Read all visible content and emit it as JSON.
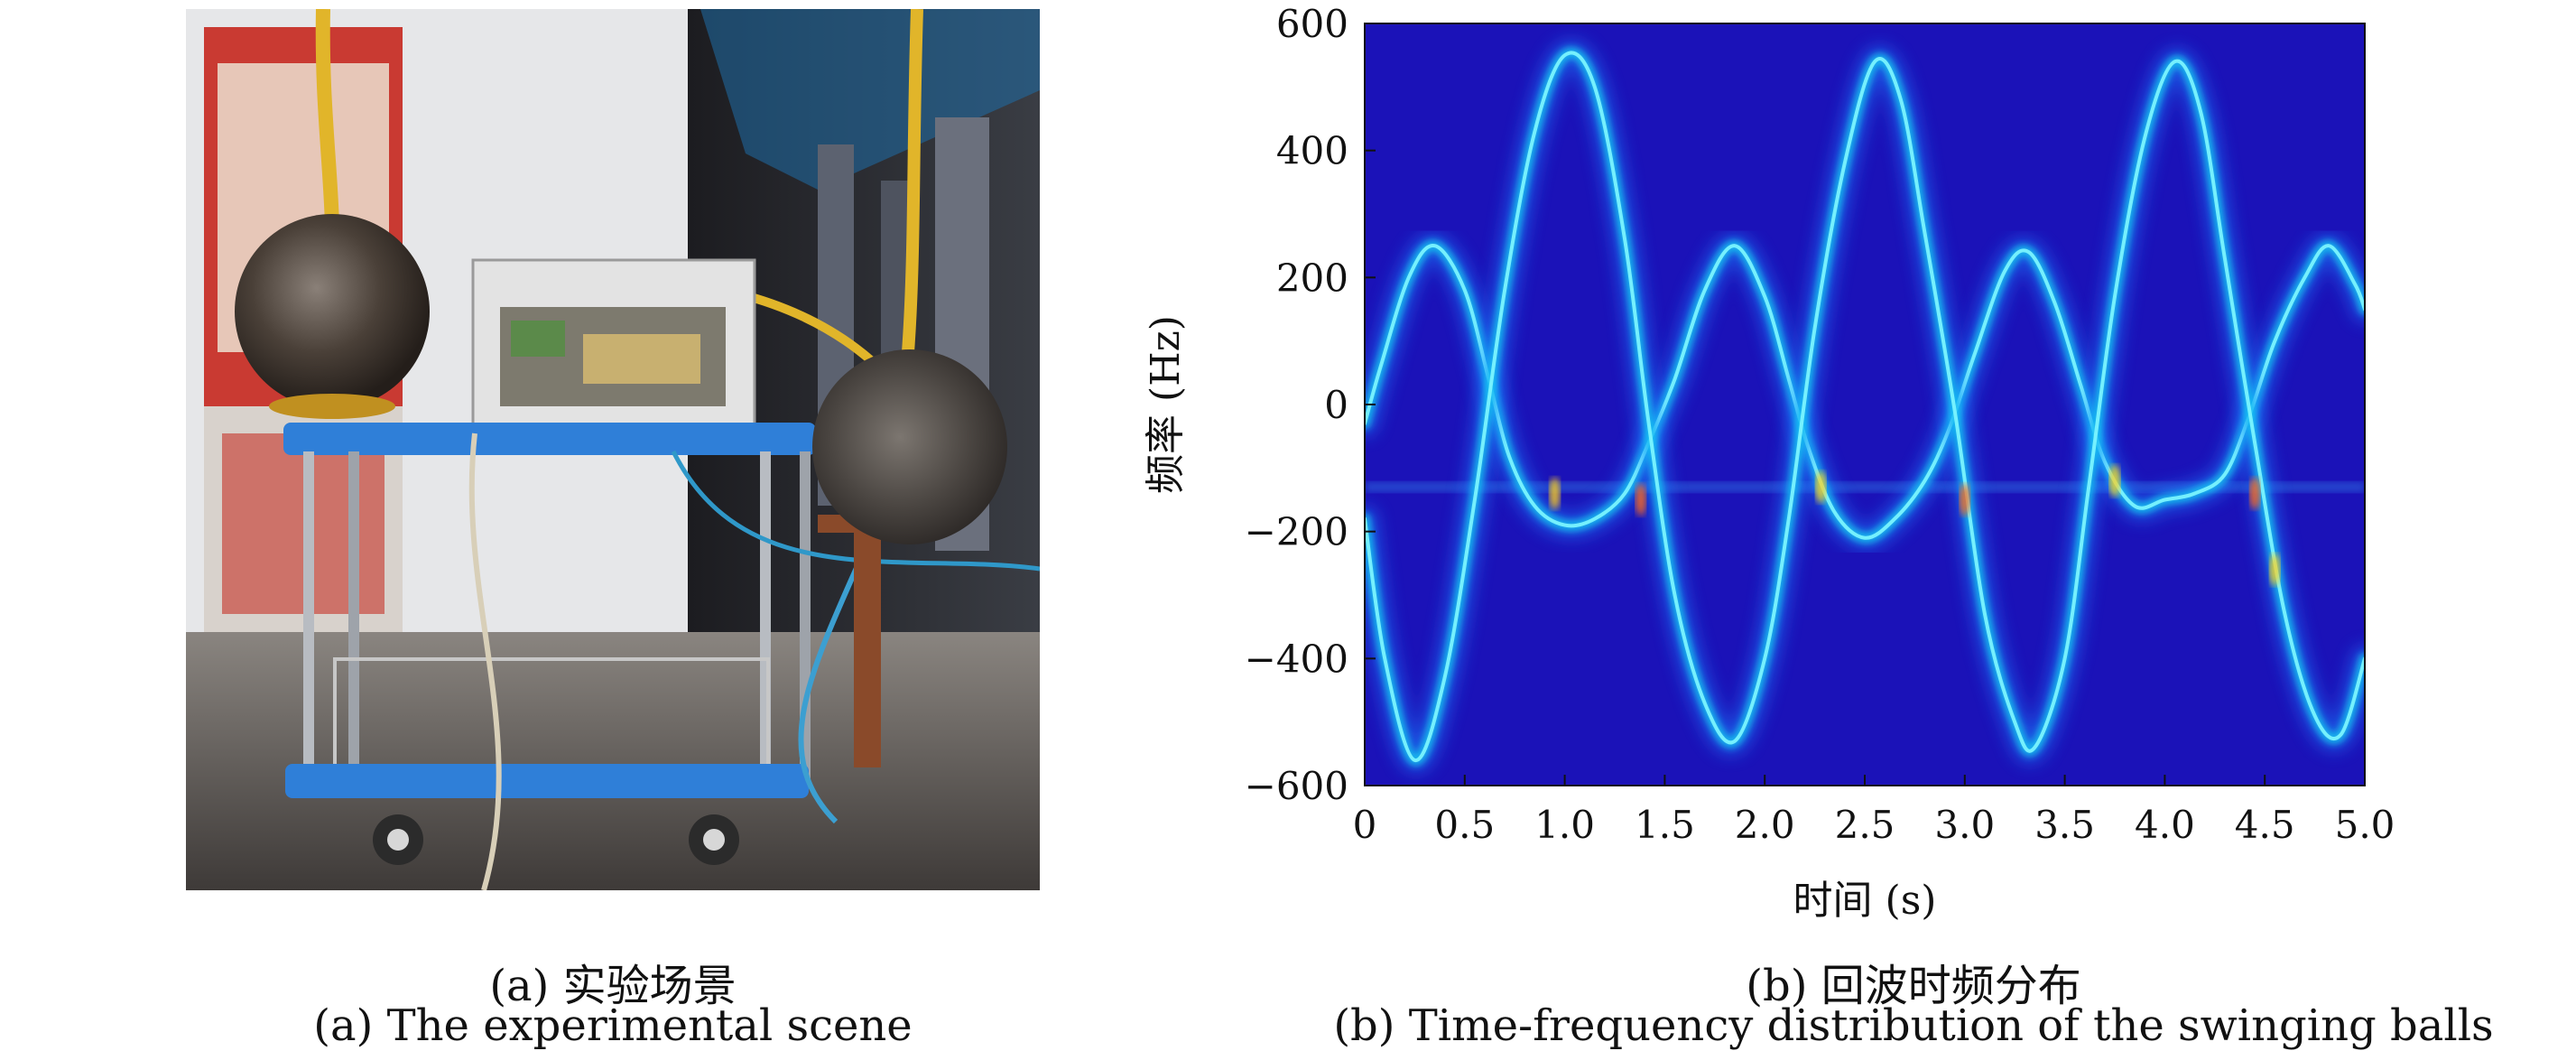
{
  "panel_a": {
    "caption_zh": "(a) 实验场景",
    "caption_en": "(a) The experimental scene",
    "photo_colors": {
      "wall": "#e6e7e9",
      "floor": "#5a5552",
      "cart": "#2f7fd8",
      "ball": "#4a4038",
      "rope": "#e1b52a",
      "box": "#d9d9d9"
    }
  },
  "panel_b": {
    "caption_zh": "(b) 回波时频分布",
    "caption_en": "(b) Time-frequency distribution of the swinging balls"
  },
  "chart_data": {
    "type": "heatmap",
    "title": "",
    "xlabel": "时间 (s)",
    "ylabel": "频率 (Hz)",
    "xlim": [
      0,
      5.0
    ],
    "ylim": [
      -600,
      600
    ],
    "xticks": [
      "0",
      "0.5",
      "1.0",
      "1.5",
      "2.0",
      "2.5",
      "3.0",
      "3.5",
      "4.0",
      "4.5",
      "5.0"
    ],
    "yticks": [
      "600",
      "400",
      "200",
      "0",
      "−200",
      "−400",
      "−600"
    ],
    "colormap": "jet",
    "background_color": "#1b12b8",
    "static_band_hz": -130,
    "series": [
      {
        "points": [
          [
            0.0,
            -30
          ],
          [
            0.08,
            60
          ],
          [
            0.22,
            200
          ],
          [
            0.35,
            250
          ],
          [
            0.5,
            180
          ],
          [
            0.62,
            40
          ],
          [
            0.72,
            -80
          ],
          [
            0.85,
            -160
          ],
          [
            1.0,
            -190
          ],
          [
            1.15,
            -180
          ],
          [
            1.3,
            -140
          ],
          [
            1.42,
            -60
          ],
          [
            1.55,
            40
          ],
          [
            1.7,
            180
          ],
          [
            1.85,
            250
          ],
          [
            2.0,
            170
          ],
          [
            2.12,
            40
          ],
          [
            2.22,
            -70
          ],
          [
            2.35,
            -170
          ],
          [
            2.5,
            -210
          ],
          [
            2.65,
            -180
          ],
          [
            2.8,
            -120
          ],
          [
            2.92,
            -40
          ],
          [
            3.05,
            80
          ],
          [
            3.2,
            210
          ],
          [
            3.32,
            240
          ],
          [
            3.45,
            160
          ],
          [
            3.58,
            30
          ],
          [
            3.7,
            -90
          ],
          [
            3.85,
            -160
          ],
          [
            4.0,
            -150
          ],
          [
            4.15,
            -140
          ],
          [
            4.3,
            -110
          ],
          [
            4.42,
            -20
          ],
          [
            4.55,
            100
          ],
          [
            4.7,
            200
          ],
          [
            4.82,
            250
          ],
          [
            4.95,
            190
          ],
          [
            5.0,
            150
          ]
        ]
      },
      {
        "points": [
          [
            0.0,
            -180
          ],
          [
            0.1,
            -400
          ],
          [
            0.25,
            -560
          ],
          [
            0.4,
            -430
          ],
          [
            0.55,
            -150
          ],
          [
            0.7,
            180
          ],
          [
            0.85,
            430
          ],
          [
            1.0,
            550
          ],
          [
            1.15,
            500
          ],
          [
            1.3,
            260
          ],
          [
            1.42,
            -30
          ],
          [
            1.55,
            -300
          ],
          [
            1.7,
            -470
          ],
          [
            1.85,
            -530
          ],
          [
            2.0,
            -400
          ],
          [
            2.12,
            -180
          ],
          [
            2.25,
            120
          ],
          [
            2.4,
            380
          ],
          [
            2.55,
            540
          ],
          [
            2.68,
            480
          ],
          [
            2.8,
            270
          ],
          [
            2.95,
            -10
          ],
          [
            3.1,
            -330
          ],
          [
            3.25,
            -500
          ],
          [
            3.35,
            -540
          ],
          [
            3.5,
            -400
          ],
          [
            3.62,
            -130
          ],
          [
            3.75,
            170
          ],
          [
            3.9,
            420
          ],
          [
            4.05,
            540
          ],
          [
            4.18,
            460
          ],
          [
            4.3,
            230
          ],
          [
            4.45,
            -60
          ],
          [
            4.6,
            -330
          ],
          [
            4.75,
            -490
          ],
          [
            4.88,
            -520
          ],
          [
            5.0,
            -400
          ]
        ]
      }
    ]
  }
}
